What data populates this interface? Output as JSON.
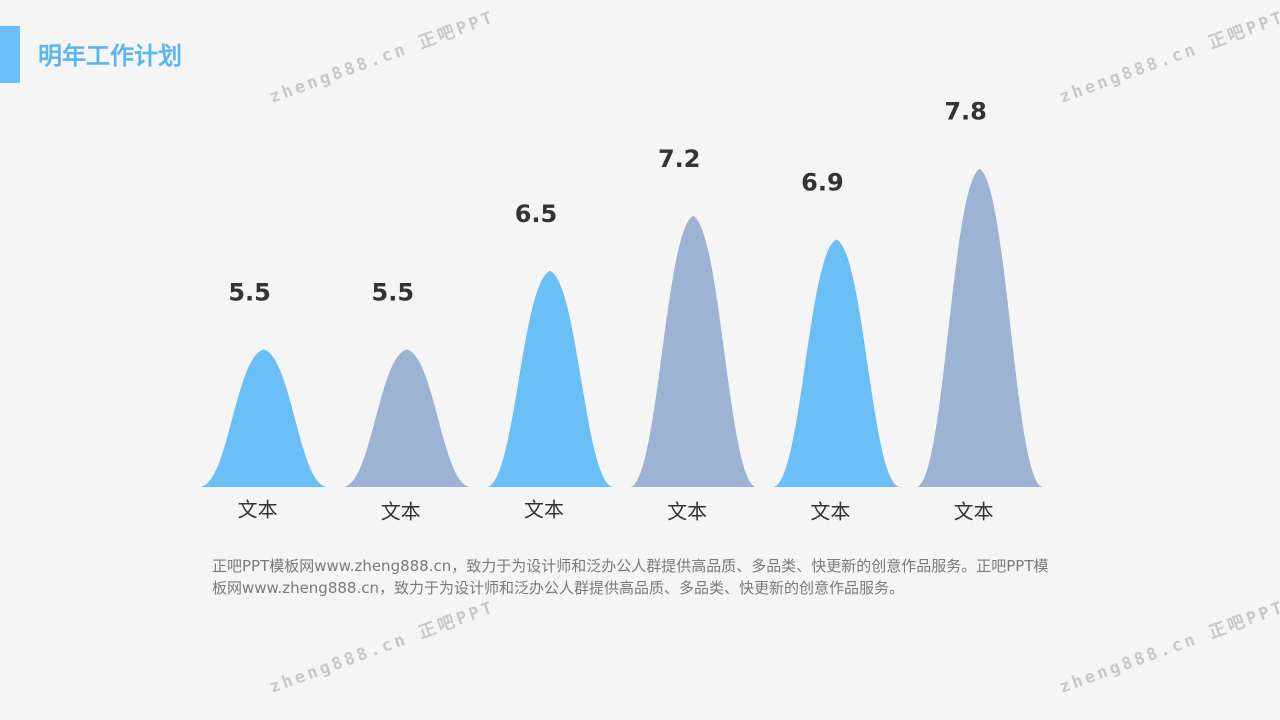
{
  "title": "明年工作计划",
  "chart_data": {
    "type": "bell",
    "categories": [
      "文本",
      "文本",
      "文本",
      "文本",
      "文本",
      "文本"
    ],
    "values": [
      5.5,
      5.5,
      6.5,
      7.2,
      6.9,
      7.8
    ],
    "colors": [
      "#6bbff7",
      "#9db3d3",
      "#6bbff7",
      "#9db3d3",
      "#6bbff7",
      "#9db3d3"
    ],
    "ylim": [
      3.75,
      8.7
    ]
  },
  "description": "正吧PPT模板网www.zheng888.cn，致力于为设计师和泛办公人群提供高品质、多品类、快更新的创意作品服务。正吧PPT模板网www.zheng888.cn，致力于为设计师和泛办公人群提供高品质、多品类、快更新的创意作品服务。",
  "watermark": "zheng888.cn 正吧PPT"
}
